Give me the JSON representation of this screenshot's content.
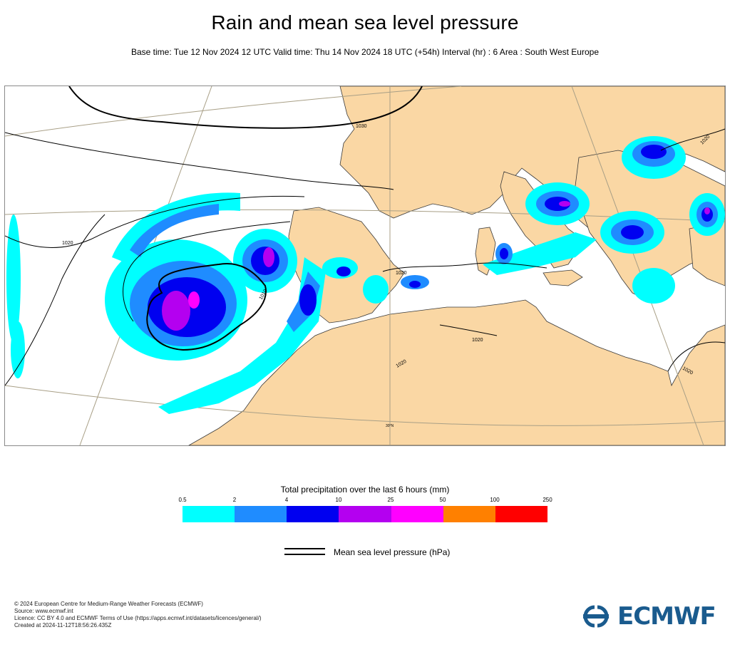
{
  "header": {
    "title": "Rain and mean sea level pressure",
    "subtitle": "Base time: Tue 12 Nov 2024 12 UTC Valid time: Thu 14 Nov 2024 18 UTC (+54h) Interval (hr) : 6 Area : South West Europe"
  },
  "map": {
    "isobar_labels": [
      "1030",
      "1020",
      "1020",
      "1010",
      "1020",
      "1020",
      "1020",
      "1020"
    ],
    "graticule_label": "30°N",
    "colors": {
      "land": "#fad7a4",
      "sea": "#ffffff",
      "isobar": "#000000",
      "graticule": "#a89f86"
    }
  },
  "legend": {
    "title": "Total precipitation over the last 6 hours (mm)",
    "ticks": [
      "0.5",
      "2",
      "4",
      "10",
      "25",
      "50",
      "100",
      "250"
    ],
    "colors": [
      "#00ffff",
      "#1f8cff",
      "#0000f0",
      "#b400f0",
      "#ff00ff",
      "#ff8000",
      "#ff0000"
    ],
    "mslp_label": "Mean sea level pressure (hPa)"
  },
  "footer": {
    "lines": [
      "© 2024 European Centre for Medium-Range Weather Forecasts (ECMWF)",
      "Source: www.ecmwf.int",
      "Licence: CC BY 4.0 and ECMWF Terms of Use (https://apps.ecmwf.int/datasets/licences/general/)",
      "Created at 2024-11-12T18:56:26.435Z"
    ],
    "logo_text": "ECMWF",
    "logo_icon": "ecmwf-logo-icon"
  }
}
